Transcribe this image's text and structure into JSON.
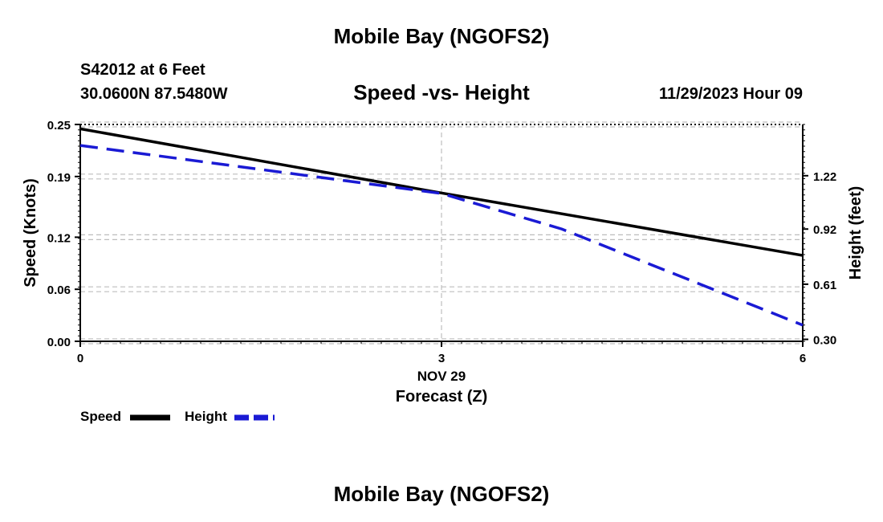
{
  "header": {
    "title": "Mobile Bay (NGOFS2)",
    "station": "S42012 at 6 Feet",
    "coords": "30.0600N  87.5480W",
    "datetime": "11/29/2023 Hour 09"
  },
  "footer": {
    "title": "Mobile Bay (NGOFS2)"
  },
  "colors": {
    "speed": "#000000",
    "height": "#1a1ad4",
    "grid": "#bdbdbd"
  },
  "chart_data": {
    "type": "line",
    "title": "Speed -vs- Height",
    "xlabel": "Forecast (Z)",
    "x_date_label": "NOV 29",
    "ylabel": "Speed (Knots)",
    "y2label": "Height (feet)",
    "xlim": [
      0,
      6
    ],
    "ylim": [
      0,
      0.25
    ],
    "y2lim": [
      0.289,
      1.508
    ],
    "x_ticks": [
      0,
      3,
      6
    ],
    "x_tick_labels": [
      "0",
      "3",
      "6"
    ],
    "y_ticks": [
      0.0,
      0.06,
      0.12,
      0.19,
      0.25
    ],
    "y_tick_labels": [
      "0.00",
      "0.06",
      "0.12",
      "0.19",
      "0.25"
    ],
    "y2_ticks": [
      0.3,
      0.61,
      0.92,
      1.22
    ],
    "y2_tick_labels": [
      "0.30",
      "0.61",
      "0.92",
      "1.22"
    ],
    "grid": true,
    "legend": "bottom-left",
    "series": [
      {
        "name": "Speed",
        "axis": "left",
        "style": "solid",
        "x": [
          0,
          3,
          6
        ],
        "values": [
          0.245,
          0.171,
          0.099
        ]
      },
      {
        "name": "Height",
        "axis": "right",
        "style": "dashed",
        "x": [
          0,
          3,
          4,
          6
        ],
        "values": [
          1.39,
          1.12,
          0.92,
          0.38
        ]
      }
    ]
  }
}
